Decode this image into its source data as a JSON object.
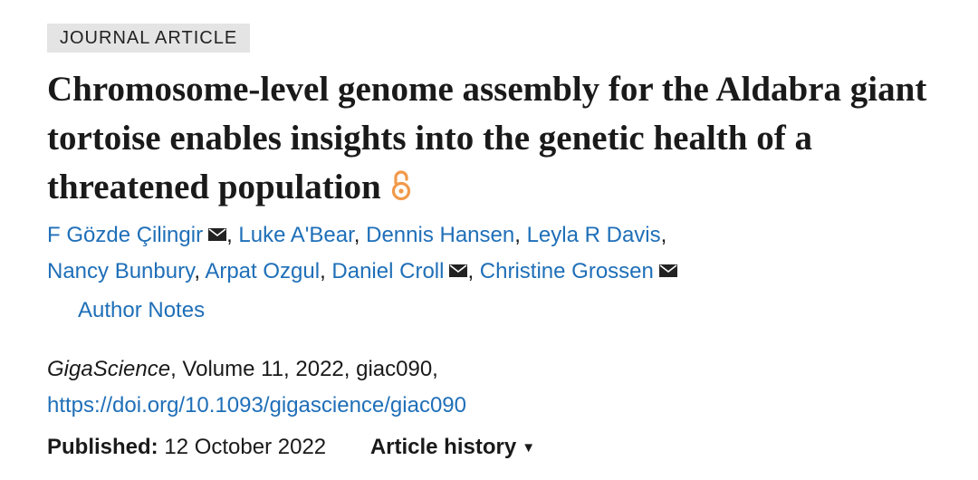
{
  "badge": "JOURNAL ARTICLE",
  "title": "Chromosome-level genome assembly for the Aldabra giant tortoise enables insights into the genetic health of a threatened population",
  "open_access_icon": "open-access-lock-icon",
  "colors": {
    "link": "#1f6fb8",
    "open_access": "#f2994a",
    "badge_bg": "#e4e4e4"
  },
  "authors": [
    {
      "name": "F Gözde Çilingir",
      "email": true
    },
    {
      "name": "Luke A'Bear",
      "email": false
    },
    {
      "name": "Dennis Hansen",
      "email": false
    },
    {
      "name": "Leyla R Davis",
      "email": false
    },
    {
      "name": "Nancy Bunbury",
      "email": false
    },
    {
      "name": "Arpat Ozgul",
      "email": false
    },
    {
      "name": "Daniel Croll",
      "email": true
    },
    {
      "name": "Christine Grossen",
      "email": true
    }
  ],
  "author_notes": "Author Notes",
  "citation": {
    "journal": "GigaScience",
    "details": ", Volume 11, 2022, giac090,",
    "doi": "https://doi.org/10.1093/gigascience/giac090"
  },
  "published": {
    "label": "Published:",
    "date": "12 October 2022"
  },
  "article_history": "Article history"
}
